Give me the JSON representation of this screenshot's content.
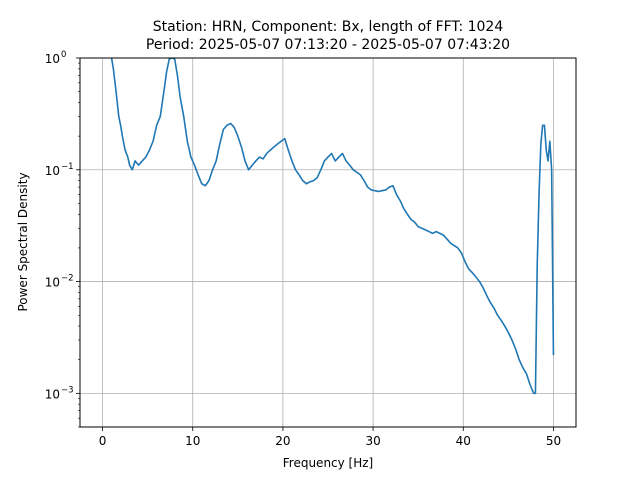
{
  "chart_data": {
    "type": "line",
    "title_line1": "Station: HRN, Component: Bx, length of FFT: 1024",
    "title_line2": "Period: 2025-05-07 07:13:20 - 2025-05-07 07:43:20",
    "xlabel": "Frequency [Hz]",
    "ylabel": "Power Spectral Density",
    "xlim": [
      -2.5,
      52.5
    ],
    "ylim": [
      0.0005,
      1
    ],
    "yscale": "log",
    "grid": true,
    "line_color": "#1f77b4",
    "x_ticks": [
      {
        "value": 0,
        "label": "0"
      },
      {
        "value": 10,
        "label": "10"
      },
      {
        "value": 20,
        "label": "20"
      },
      {
        "value": 30,
        "label": "30"
      },
      {
        "value": 40,
        "label": "40"
      },
      {
        "value": 50,
        "label": "50"
      }
    ],
    "y_ticks": [
      {
        "value": 1,
        "base": "10",
        "exp": "0"
      },
      {
        "value": 0.1,
        "base": "10",
        "exp": "−1"
      },
      {
        "value": 0.01,
        "base": "10",
        "exp": "−2"
      },
      {
        "value": 0.001,
        "base": "10",
        "exp": "−3"
      }
    ],
    "series": [
      {
        "x": [
          1.0,
          1.2,
          1.5,
          1.8,
          2.0,
          2.2,
          2.5,
          2.8,
          3.0,
          3.3,
          3.6,
          4.0,
          4.4,
          4.8,
          5.2,
          5.6,
          6.0,
          6.4,
          6.8,
          7.1,
          7.4,
          7.7,
          8.0,
          8.3,
          8.6,
          9.0,
          9.4,
          9.8,
          10.2,
          10.6,
          11.0,
          11.4,
          11.8,
          12.2,
          12.6,
          13.0,
          13.4,
          13.8,
          14.2,
          14.6,
          15.0,
          15.4,
          15.8,
          16.2,
          16.6,
          17.0,
          17.4,
          17.8,
          18.2,
          18.6,
          19.0,
          19.4,
          19.8,
          20.2,
          20.6,
          21.0,
          21.4,
          21.8,
          22.2,
          22.6,
          23.0,
          23.4,
          23.8,
          24.2,
          24.6,
          25.0,
          25.4,
          25.8,
          26.2,
          26.6,
          27.0,
          27.4,
          27.8,
          28.2,
          28.6,
          29.0,
          29.4,
          29.8,
          30.2,
          30.6,
          31.0,
          31.4,
          31.8,
          32.2,
          32.6,
          33.0,
          33.4,
          33.8,
          34.2,
          34.6,
          35.0,
          35.4,
          35.8,
          36.2,
          36.6,
          37.0,
          37.4,
          37.8,
          38.2,
          38.6,
          39.0,
          39.4,
          39.8,
          40.2,
          40.6,
          41.0,
          41.4,
          41.8,
          42.2,
          42.6,
          43.0,
          43.4,
          43.8,
          44.2,
          44.6,
          45.0,
          45.4,
          45.8,
          46.2,
          46.6,
          47.0,
          47.4,
          47.8,
          48.0,
          48.2,
          48.4,
          48.6,
          48.8,
          49.0,
          49.2,
          49.4,
          49.6,
          49.8,
          50.0
        ],
        "y": [
          1.0,
          0.8,
          0.5,
          0.3,
          0.25,
          0.2,
          0.15,
          0.13,
          0.11,
          0.1,
          0.12,
          0.11,
          0.12,
          0.13,
          0.15,
          0.18,
          0.25,
          0.3,
          0.5,
          0.75,
          0.98,
          1.0,
          0.98,
          0.7,
          0.45,
          0.3,
          0.18,
          0.13,
          0.11,
          0.09,
          0.075,
          0.072,
          0.08,
          0.1,
          0.12,
          0.17,
          0.23,
          0.25,
          0.26,
          0.24,
          0.2,
          0.16,
          0.12,
          0.1,
          0.11,
          0.12,
          0.13,
          0.125,
          0.14,
          0.15,
          0.16,
          0.17,
          0.18,
          0.19,
          0.15,
          0.12,
          0.1,
          0.09,
          0.08,
          0.075,
          0.078,
          0.08,
          0.085,
          0.1,
          0.12,
          0.13,
          0.14,
          0.12,
          0.13,
          0.14,
          0.12,
          0.11,
          0.1,
          0.095,
          0.09,
          0.08,
          0.07,
          0.066,
          0.065,
          0.064,
          0.065,
          0.066,
          0.07,
          0.072,
          0.06,
          0.053,
          0.045,
          0.04,
          0.036,
          0.034,
          0.031,
          0.03,
          0.029,
          0.028,
          0.027,
          0.028,
          0.027,
          0.026,
          0.024,
          0.022,
          0.021,
          0.02,
          0.018,
          0.015,
          0.013,
          0.012,
          0.011,
          0.01,
          0.0088,
          0.0075,
          0.0065,
          0.0058,
          0.005,
          0.0045,
          0.004,
          0.0035,
          0.003,
          0.0025,
          0.002,
          0.0017,
          0.0015,
          0.0012,
          0.001,
          0.001,
          0.014,
          0.06,
          0.17,
          0.25,
          0.25,
          0.15,
          0.12,
          0.18,
          0.1,
          0.0022
        ]
      }
    ]
  }
}
